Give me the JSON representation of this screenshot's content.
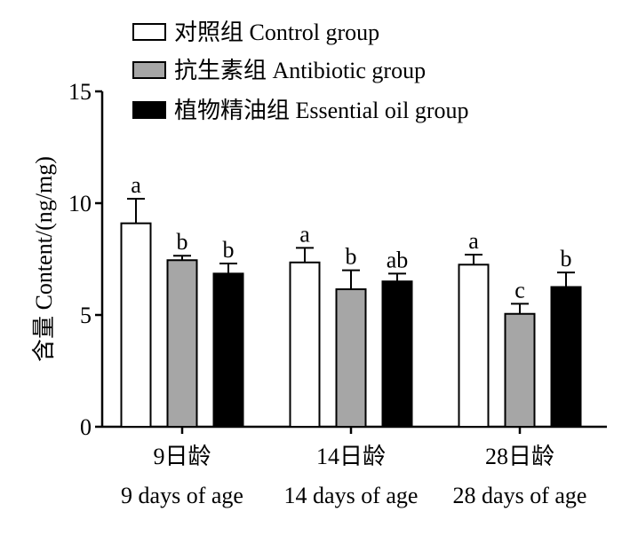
{
  "chart_data": {
    "type": "bar",
    "ylabel": "含量 Content/(ng/mg)",
    "ylim": [
      0,
      15
    ],
    "yticks": [
      0,
      5,
      10,
      15
    ],
    "categories": [
      {
        "zh": "9日龄",
        "en": "9 days of age"
      },
      {
        "zh": "14日龄",
        "en": "14 days of age"
      },
      {
        "zh": "28日龄",
        "en": "28 days of age"
      }
    ],
    "legend_position": "top-left",
    "series": [
      {
        "name": "对照组 Control group",
        "fill": "#ffffff",
        "values": [
          9.1,
          7.35,
          7.25
        ],
        "errors": [
          1.1,
          0.65,
          0.45
        ],
        "letters": [
          "a",
          "a",
          "a"
        ]
      },
      {
        "name": "抗生素组 Antibiotic group",
        "fill": "#a6a6a6",
        "values": [
          7.45,
          6.15,
          5.05
        ],
        "errors": [
          0.2,
          0.85,
          0.45
        ],
        "letters": [
          "b",
          "b",
          "c"
        ]
      },
      {
        "name": "植物精油组 Essential oil group",
        "fill": "#000000",
        "values": [
          6.85,
          6.5,
          6.25
        ],
        "errors": [
          0.45,
          0.35,
          0.65
        ],
        "letters": [
          "b",
          "ab",
          "b"
        ]
      }
    ]
  }
}
